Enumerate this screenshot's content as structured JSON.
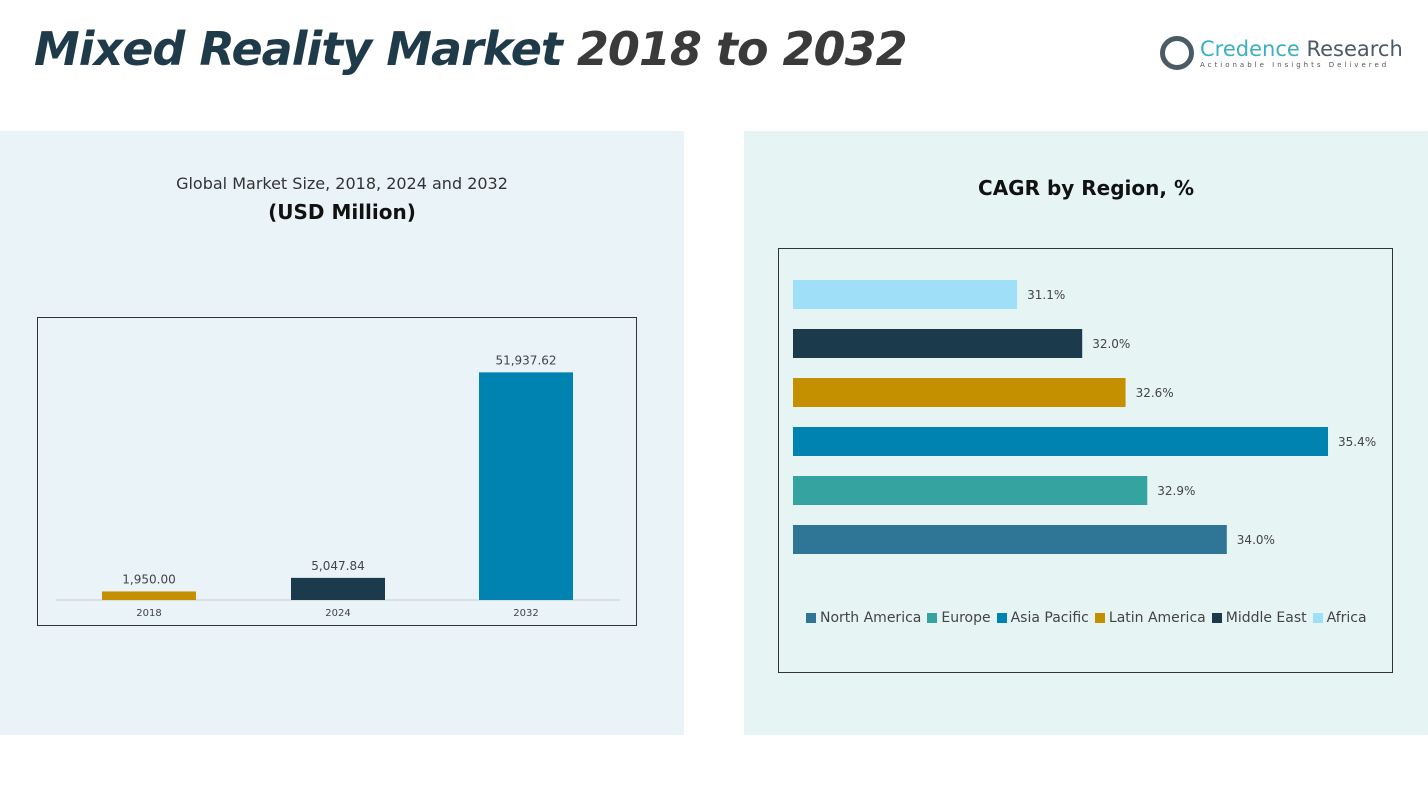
{
  "title": {
    "main": "Mixed Reality Market",
    "years": "2018 to 2032"
  },
  "logo": {
    "brand1": "Credence",
    "brand2": " Research",
    "tagline": "Actionable Insights Delivered"
  },
  "chart_data": [
    {
      "type": "bar",
      "title": "Global Market Size, 2018, 2024 and 2032",
      "subtitle": "(USD Million)",
      "categories": [
        "2018",
        "2024",
        "2032"
      ],
      "values": [
        1950.0,
        5047.84,
        51937.62
      ],
      "labels": [
        "1,950.00",
        "5,047.84",
        "51,937.62"
      ],
      "colors": [
        "#c49000",
        "#1b3a4b",
        "#0083b0"
      ],
      "ylim": [
        0,
        60000
      ]
    },
    {
      "type": "bar",
      "orientation": "horizontal",
      "title": "CAGR by Region, %",
      "categories": [
        "North America",
        "Europe",
        "Asia Pacific",
        "Latin America",
        "Middle East",
        "Africa"
      ],
      "values": [
        34.0,
        32.9,
        35.4,
        32.6,
        32.0,
        31.1
      ],
      "labels": [
        "34.0%",
        "32.9%",
        "35.4%",
        "32.6%",
        "32.0%",
        "31.1%"
      ],
      "colors": [
        "#2e7596",
        "#35a3a0",
        "#0083b0",
        "#c49000",
        "#1b3a4b",
        "#9fe0f8"
      ],
      "xlim": [
        28,
        37
      ],
      "legend": "bottom"
    }
  ]
}
